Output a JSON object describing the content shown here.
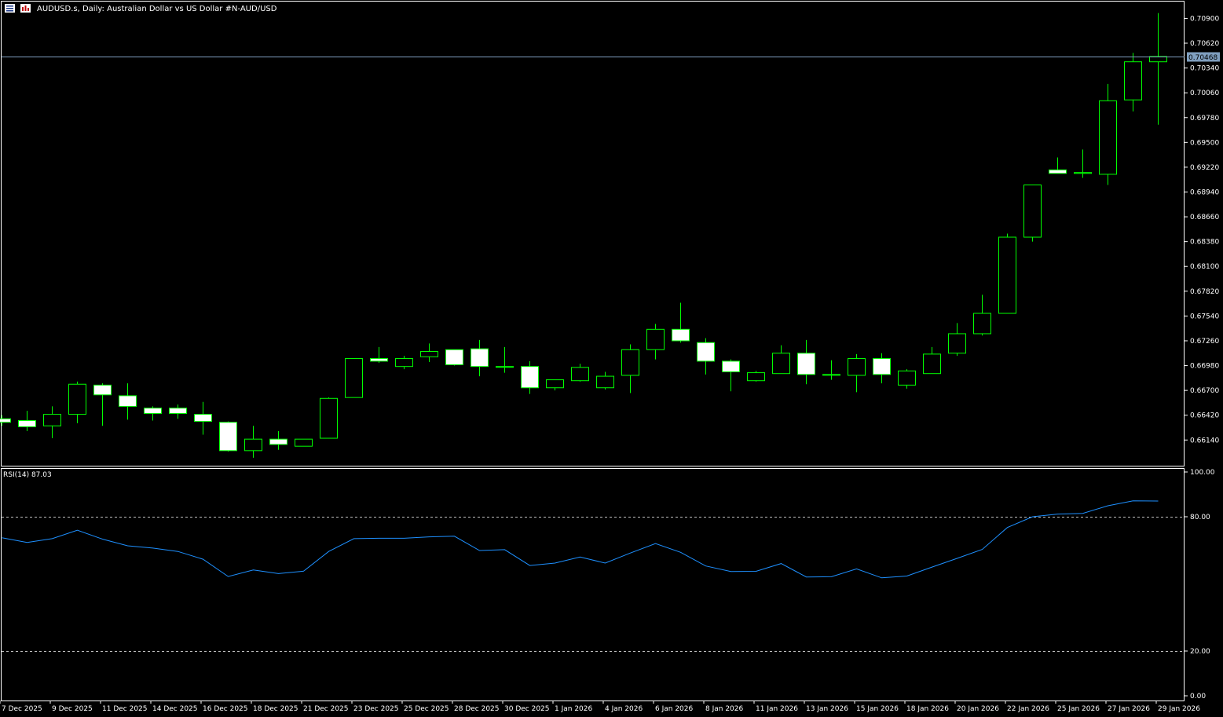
{
  "window": {
    "title": "AUDUSD.s, Daily:  Australian Dollar vs US Dollar #N-AUD/USD",
    "icons": [
      "menu-icon",
      "chart-type-icon"
    ]
  },
  "colors": {
    "background": "#000000",
    "bull_body": "#000000",
    "bear_body": "#ffffff",
    "candle_outline": "#00ff00",
    "bid_line": "#7f9fbf",
    "rsi_line": "#1e90ff",
    "level_line": "#c0c0c0",
    "axis_text": "#ffffff",
    "price_label_bg": "#7f9fbf"
  },
  "chart_data": [
    {
      "type": "candlestick",
      "title": "AUDUSD.s, Daily:  Australian Dollar vs US Dollar #N-AUD/USD",
      "ylim": [
        0.6585,
        0.7109
      ],
      "y_ticks": [
        "0.70900",
        "0.70620",
        "0.70340",
        "0.70060",
        "0.69780",
        "0.69500",
        "0.69220",
        "0.68940",
        "0.68660",
        "0.68380",
        "0.68100",
        "0.67820",
        "0.67540",
        "0.67260",
        "0.66980",
        "0.66700",
        "0.66420",
        "0.66140"
      ],
      "current_price": "0.70468",
      "x_tick_labels": [
        "7 Dec 2025",
        "9 Dec 2025",
        "11 Dec 2025",
        "14 Dec 2025",
        "16 Dec 2025",
        "18 Dec 2025",
        "21 Dec 2025",
        "23 Dec 2025",
        "25 Dec 2025",
        "28 Dec 2025",
        "30 Dec 2025",
        "1 Jan 2026",
        "4 Jan 2026",
        "6 Jan 2026",
        "8 Jan 2026",
        "11 Jan 2026",
        "13 Jan 2026",
        "15 Jan 2026",
        "18 Jan 2026",
        "20 Jan 2026",
        "22 Jan 2026",
        "25 Jan 2026",
        "27 Jan 2026",
        "29 Jan 2026"
      ],
      "candles": [
        {
          "o": 0.6638,
          "h": 0.6642,
          "l": 0.663,
          "c": 0.6634
        },
        {
          "o": 0.6636,
          "h": 0.6647,
          "l": 0.6624,
          "c": 0.6629
        },
        {
          "o": 0.663,
          "h": 0.6652,
          "l": 0.6616,
          "c": 0.6643
        },
        {
          "o": 0.6643,
          "h": 0.668,
          "l": 0.6633,
          "c": 0.6677
        },
        {
          "o": 0.6676,
          "h": 0.6678,
          "l": 0.663,
          "c": 0.6665
        },
        {
          "o": 0.6664,
          "h": 0.6678,
          "l": 0.6637,
          "c": 0.6652
        },
        {
          "o": 0.665,
          "h": 0.6652,
          "l": 0.6636,
          "c": 0.6644
        },
        {
          "o": 0.665,
          "h": 0.6654,
          "l": 0.6638,
          "c": 0.6644
        },
        {
          "o": 0.6643,
          "h": 0.6657,
          "l": 0.662,
          "c": 0.6635
        },
        {
          "o": 0.6634,
          "h": 0.6635,
          "l": 0.6601,
          "c": 0.6602
        },
        {
          "o": 0.6602,
          "h": 0.663,
          "l": 0.6594,
          "c": 0.6615
        },
        {
          "o": 0.6615,
          "h": 0.6624,
          "l": 0.6603,
          "c": 0.6609
        },
        {
          "o": 0.6607,
          "h": 0.6615,
          "l": 0.6607,
          "c": 0.6615
        },
        {
          "o": 0.6616,
          "h": 0.6662,
          "l": 0.6616,
          "c": 0.6661
        },
        {
          "o": 0.6662,
          "h": 0.6706,
          "l": 0.6662,
          "c": 0.6706
        },
        {
          "o": 0.6706,
          "h": 0.6719,
          "l": 0.6701,
          "c": 0.6703
        },
        {
          "o": 0.6697,
          "h": 0.6709,
          "l": 0.6694,
          "c": 0.6706
        },
        {
          "o": 0.6708,
          "h": 0.6723,
          "l": 0.6702,
          "c": 0.6714
        },
        {
          "o": 0.6716,
          "h": 0.6716,
          "l": 0.6698,
          "c": 0.6699
        },
        {
          "o": 0.6717,
          "h": 0.6727,
          "l": 0.6686,
          "c": 0.6697
        },
        {
          "o": 0.6697,
          "h": 0.6719,
          "l": 0.669,
          "c": 0.6697
        },
        {
          "o": 0.6697,
          "h": 0.6703,
          "l": 0.6666,
          "c": 0.6673
        },
        {
          "o": 0.6673,
          "h": 0.6682,
          "l": 0.667,
          "c": 0.6682
        },
        {
          "o": 0.6681,
          "h": 0.67,
          "l": 0.668,
          "c": 0.6696
        },
        {
          "o": 0.6673,
          "h": 0.6691,
          "l": 0.6671,
          "c": 0.6686
        },
        {
          "o": 0.6687,
          "h": 0.6722,
          "l": 0.6667,
          "c": 0.6716
        },
        {
          "o": 0.6716,
          "h": 0.6745,
          "l": 0.6705,
          "c": 0.6739
        },
        {
          "o": 0.6739,
          "h": 0.6769,
          "l": 0.6724,
          "c": 0.6726
        },
        {
          "o": 0.6724,
          "h": 0.6729,
          "l": 0.6688,
          "c": 0.6703
        },
        {
          "o": 0.6703,
          "h": 0.6705,
          "l": 0.6669,
          "c": 0.6691
        },
        {
          "o": 0.6681,
          "h": 0.6692,
          "l": 0.668,
          "c": 0.669
        },
        {
          "o": 0.6689,
          "h": 0.6721,
          "l": 0.6689,
          "c": 0.6712
        },
        {
          "o": 0.6712,
          "h": 0.6727,
          "l": 0.6677,
          "c": 0.6688
        },
        {
          "o": 0.6688,
          "h": 0.6704,
          "l": 0.6682,
          "c": 0.6688
        },
        {
          "o": 0.6687,
          "h": 0.6711,
          "l": 0.6668,
          "c": 0.6706
        },
        {
          "o": 0.6706,
          "h": 0.6712,
          "l": 0.6678,
          "c": 0.6688
        },
        {
          "o": 0.6676,
          "h": 0.6694,
          "l": 0.6672,
          "c": 0.6692
        },
        {
          "o": 0.6689,
          "h": 0.6719,
          "l": 0.6689,
          "c": 0.6711
        },
        {
          "o": 0.6712,
          "h": 0.6746,
          "l": 0.6709,
          "c": 0.6734
        },
        {
          "o": 0.6734,
          "h": 0.6778,
          "l": 0.6732,
          "c": 0.6757
        },
        {
          "o": 0.6757,
          "h": 0.6847,
          "l": 0.6757,
          "c": 0.6843
        },
        {
          "o": 0.6843,
          "h": 0.6902,
          "l": 0.6838,
          "c": 0.6902
        },
        {
          "o": 0.6919,
          "h": 0.6933,
          "l": 0.6915,
          "c": 0.6915
        },
        {
          "o": 0.6915,
          "h": 0.6942,
          "l": 0.691,
          "c": 0.6916
        },
        {
          "o": 0.6914,
          "h": 0.7016,
          "l": 0.6902,
          "c": 0.6997
        },
        {
          "o": 0.6998,
          "h": 0.7051,
          "l": 0.6985,
          "c": 0.7041
        },
        {
          "o": 0.7041,
          "h": 0.7096,
          "l": 0.697,
          "c": 0.7047
        }
      ]
    },
    {
      "type": "line",
      "title": "RSI(14) 87.03",
      "ylim": [
        0,
        100
      ],
      "y_ticks": [
        "100.00",
        "80.00",
        "20.00",
        "0.00"
      ],
      "levels": [
        80,
        20
      ],
      "series": [
        {
          "values": [
            70.6,
            68.5,
            70.2,
            74.0,
            70.0,
            67.0,
            66.0,
            64.5,
            61.0,
            53.3,
            56.2,
            54.6,
            55.7,
            64.5,
            70.2,
            70.4,
            70.4,
            71.0,
            71.3,
            64.9,
            65.3,
            58.2,
            59.3,
            62.0,
            59.3,
            63.8,
            68.0,
            64.1,
            58.0,
            55.5,
            55.6,
            59.1,
            53.1,
            53.2,
            56.7,
            52.7,
            53.5,
            57.5,
            61.4,
            65.4,
            75.2,
            80.0,
            81.2,
            81.5,
            84.9,
            87.1,
            87.0
          ]
        }
      ]
    }
  ]
}
